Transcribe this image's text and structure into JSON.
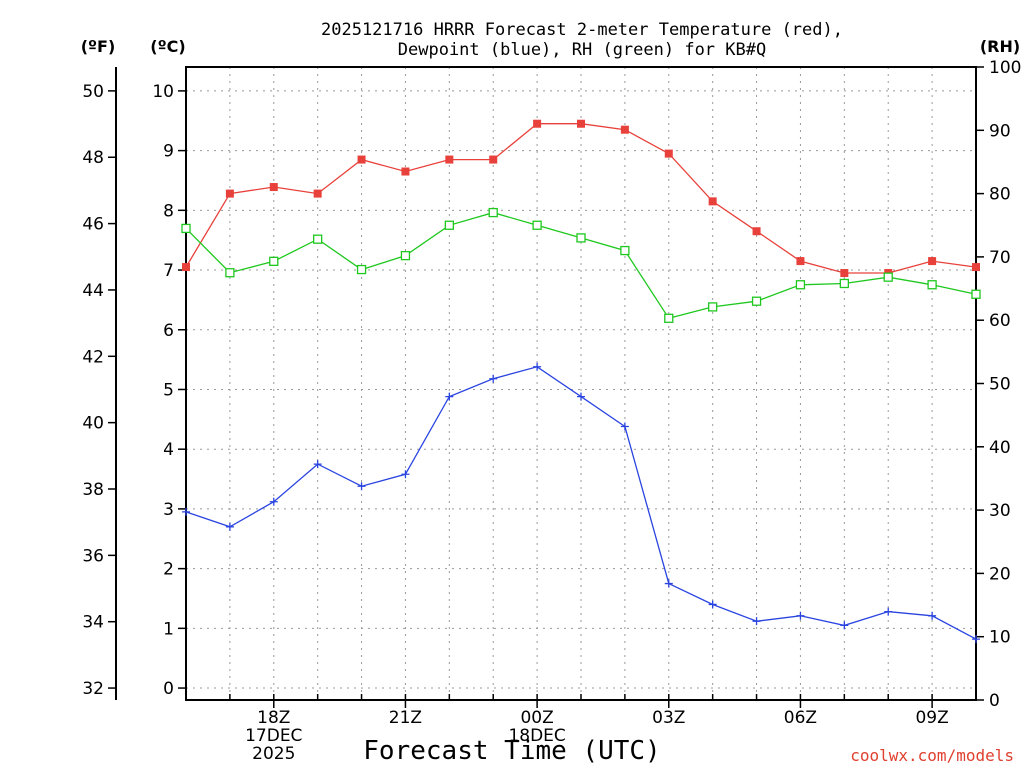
{
  "chart_data": {
    "type": "line",
    "title_line1": "2025121716 HRRR Forecast 2-meter Temperature (red),",
    "title_line2": "Dewpoint (blue), RH (green) for KB#Q",
    "xlabel": "Forecast Time (UTC)",
    "credit": "coolwx.com/models",
    "unit_f": "(ºF)",
    "unit_c": "(ºC)",
    "unit_rh": "(RH)",
    "x_hours": [
      16,
      17,
      18,
      19,
      20,
      21,
      22,
      23,
      24,
      25,
      26,
      27,
      28,
      29,
      30,
      31,
      32,
      33,
      34
    ],
    "x_ticks": [
      {
        "hour": 18,
        "lines": [
          "18Z",
          "17DEC",
          "2025"
        ]
      },
      {
        "hour": 21,
        "lines": [
          "21Z"
        ]
      },
      {
        "hour": 24,
        "lines": [
          "00Z",
          "18DEC"
        ]
      },
      {
        "hour": 27,
        "lines": [
          "03Z"
        ]
      },
      {
        "hour": 30,
        "lines": [
          "06Z"
        ]
      },
      {
        "hour": 33,
        "lines": [
          "09Z"
        ]
      }
    ],
    "celsius_ticks": [
      "0",
      "1",
      "2",
      "3",
      "4",
      "5",
      "6",
      "7",
      "8",
      "9",
      "10"
    ],
    "fahrenheit_ticks": [
      "32",
      "34",
      "36",
      "38",
      "40",
      "42",
      "44",
      "46",
      "48",
      "50"
    ],
    "rh_ticks": [
      "0",
      "10",
      "20",
      "30",
      "40",
      "50",
      "60",
      "70",
      "80",
      "90",
      "100"
    ],
    "c_range": [
      -0.2,
      10.4
    ],
    "series": [
      {
        "name": "Temperature",
        "unit": "C",
        "color": "#e8403a",
        "marker": "filled-square",
        "values": [
          7.05,
          8.28,
          8.39,
          8.28,
          8.85,
          8.65,
          8.85,
          8.85,
          9.45,
          9.45,
          9.35,
          8.95,
          8.15,
          7.65,
          7.15,
          6.95,
          6.95,
          7.15,
          7.05
        ]
      },
      {
        "name": "Dewpoint",
        "unit": "C",
        "color": "#2a44e0",
        "marker": "plus",
        "values": [
          2.95,
          2.7,
          3.12,
          3.75,
          3.38,
          3.58,
          4.88,
          5.18,
          5.38,
          4.88,
          4.38,
          1.75,
          1.4,
          1.12,
          1.21,
          1.05,
          1.28,
          1.21,
          0.82
        ]
      },
      {
        "name": "RH",
        "unit": "%",
        "color": "#1ec81e",
        "marker": "open-square",
        "values": [
          74.5,
          67.5,
          69.3,
          72.8,
          68.0,
          70.2,
          75.0,
          77.0,
          75.0,
          73.0,
          71.0,
          60.3,
          62.1,
          63.0,
          65.6,
          65.8,
          66.8,
          65.6,
          64.1
        ]
      }
    ]
  }
}
